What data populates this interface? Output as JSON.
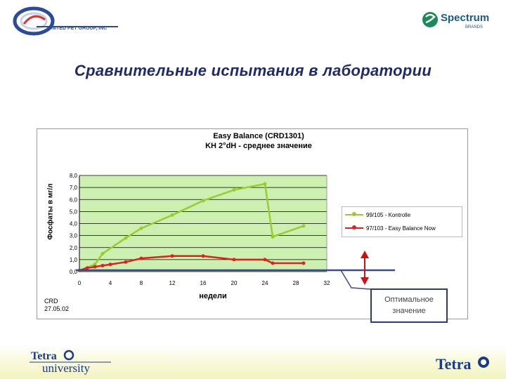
{
  "header": {
    "left_logo_text": "UNITED PET GROUP, INC",
    "right_logo_text": "Spectrum",
    "right_logo_sub": "BRANDS"
  },
  "slide_title": "Сравнительные испытания в лаборатории",
  "chart_data": {
    "type": "line",
    "title": "Easy Balance (CRD1301)",
    "subtitle": "KH 2°dH - среднее значение",
    "xlabel": "недели",
    "ylabel": "Фосфаты в мг/л",
    "xlim": [
      0,
      32
    ],
    "ylim": [
      0,
      8
    ],
    "x_ticks": [
      "0",
      "4",
      "8",
      "12",
      "16",
      "20",
      "24",
      "28",
      "32"
    ],
    "y_ticks": [
      "0,0",
      "1,0",
      "2,0",
      "3,0",
      "4,0",
      "5,0",
      "6,0",
      "7,0",
      "8,0"
    ],
    "grid": true,
    "legend_position": "right",
    "series": [
      {
        "name": "99/105 - Kontrolle",
        "color": "#99cc33",
        "x": [
          0,
          2,
          3,
          6,
          8,
          12,
          16,
          20,
          24,
          25,
          29
        ],
        "y": [
          0.1,
          0.6,
          1.5,
          2.8,
          3.6,
          4.7,
          5.9,
          6.8,
          7.3,
          2.9,
          3.8
        ]
      },
      {
        "name": "97/103 - Easy Balance Now",
        "color": "#e02020",
        "x": [
          0,
          1,
          2,
          3,
          4,
          6,
          8,
          12,
          16,
          20,
          24,
          25,
          29
        ],
        "y": [
          0.1,
          0.3,
          0.4,
          0.5,
          0.6,
          0.8,
          1.1,
          1.3,
          1.3,
          1.0,
          1.0,
          0.7,
          0.7
        ]
      }
    ],
    "annotation_text": "CRD\n27.05.02"
  },
  "crd_line1": "CRD",
  "crd_line2": "27.05.02",
  "callout": {
    "line1": "Оптимальное",
    "line2": "значение"
  },
  "footer": {
    "left_logo_top": "Tetra",
    "left_logo_bottom": "university",
    "right_logo": "Tetra"
  },
  "colors": {
    "title_blue": "#1f2a6b",
    "plot_bg": "#ccf0b0",
    "optimal_line": "#3a4a8a",
    "arrow_red": "#d01010"
  }
}
